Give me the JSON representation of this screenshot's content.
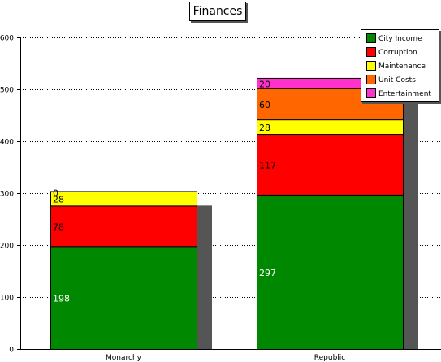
{
  "chart_data": {
    "type": "bar",
    "stacked": true,
    "title": "Finances",
    "categories": [
      "Monarchy",
      "Republic"
    ],
    "series": [
      {
        "name": "City Income",
        "color": "#008800",
        "values": [
          198,
          297
        ]
      },
      {
        "name": "Corruption",
        "color": "#ff0000",
        "values": [
          78,
          117
        ]
      },
      {
        "name": "Maintenance",
        "color": "#ffff00",
        "values": [
          28,
          28
        ]
      },
      {
        "name": "Unit Costs",
        "color": "#ff6600",
        "values": [
          0,
          60
        ]
      },
      {
        "name": "Entertainment",
        "color": "#ff33cc",
        "values": [
          0,
          20
        ]
      }
    ],
    "value_labels": [
      [
        "198",
        "78",
        "28",
        "0",
        ""
      ],
      [
        "297",
        "117",
        "28",
        "60",
        "20"
      ]
    ],
    "shadow_totals": [
      276,
      500
    ],
    "yticks": [
      0,
      100,
      200,
      300,
      400,
      500,
      600
    ],
    "ylim": [
      0,
      600
    ],
    "grid": true,
    "legend_position": "top-right",
    "shadow_color": "#555555"
  }
}
